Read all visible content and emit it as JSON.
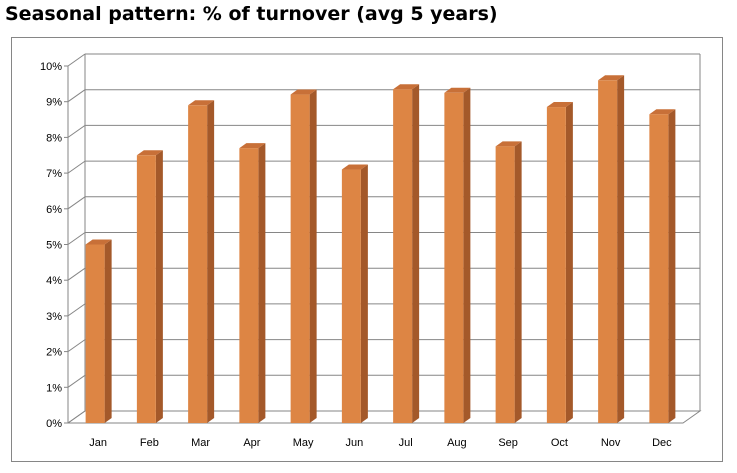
{
  "chart_data": {
    "type": "bar",
    "title": "Seasonal pattern: % of turnover (avg 5 years)",
    "xlabel": "",
    "ylabel": "",
    "categories": [
      "Jan",
      "Feb",
      "Mar",
      "Apr",
      "May",
      "Jun",
      "Jul",
      "Aug",
      "Sep",
      "Oct",
      "Nov",
      "Dec"
    ],
    "values": [
      5.0,
      7.5,
      8.9,
      7.7,
      9.2,
      7.1,
      9.35,
      9.25,
      7.75,
      8.85,
      9.6,
      8.65
    ],
    "value_unit": "%",
    "ylim": [
      0,
      10
    ],
    "yticks": [
      "0%",
      "1%",
      "2%",
      "3%",
      "4%",
      "5%",
      "6%",
      "7%",
      "8%",
      "9%",
      "10%"
    ],
    "grid": true,
    "style": "3d-column",
    "bar_color": "#DD8544",
    "bar_side_color": "#A4592A",
    "bar_top_color": "#C87038"
  }
}
